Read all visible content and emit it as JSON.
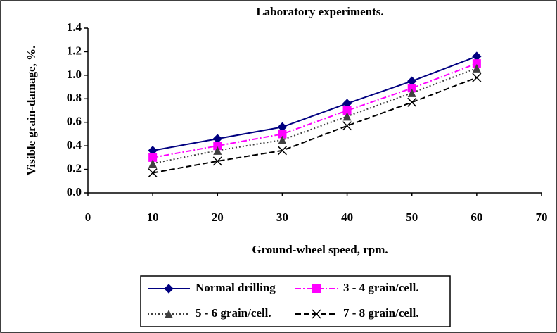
{
  "chart_data": {
    "type": "line",
    "title": "Laboratory experiments.",
    "xlabel": "Ground-wheel speed, rpm.",
    "ylabel": "Visible grain-damage, %.",
    "x": [
      10,
      20,
      30,
      40,
      50,
      60
    ],
    "xlim": [
      0,
      70
    ],
    "xticks": [
      0,
      10,
      20,
      30,
      40,
      50,
      60,
      70
    ],
    "ylim": [
      0,
      1.4
    ],
    "yticks": [
      {
        "value": 0,
        "label": "0.0"
      },
      0.2,
      0.4,
      0.6,
      0.8,
      {
        "value": 1,
        "label": "1.0"
      },
      1.2,
      1.4
    ],
    "legend": "bottom",
    "series": [
      {
        "name": "Normal drilling",
        "color": "#000080",
        "marker": "diamond",
        "line_style": "solid",
        "values": [
          0.36,
          0.46,
          0.56,
          0.76,
          0.95,
          1.16
        ]
      },
      {
        "name": "3 - 4 grain/cell.",
        "color": "#ff00ff",
        "marker": "square",
        "line_style": "dashdot",
        "values": [
          0.3,
          0.4,
          0.5,
          0.7,
          0.89,
          1.1
        ]
      },
      {
        "name": "5 - 6 grain/cell.",
        "color": "#404040",
        "marker": "triangle",
        "line_style": "dotted",
        "values": [
          0.25,
          0.36,
          0.45,
          0.65,
          0.85,
          1.06
        ]
      },
      {
        "name": "7 - 8 grain/cell.",
        "color": "#000000",
        "marker": "x",
        "line_style": "dashed",
        "values": [
          0.17,
          0.27,
          0.36,
          0.57,
          0.77,
          0.98
        ]
      }
    ]
  }
}
